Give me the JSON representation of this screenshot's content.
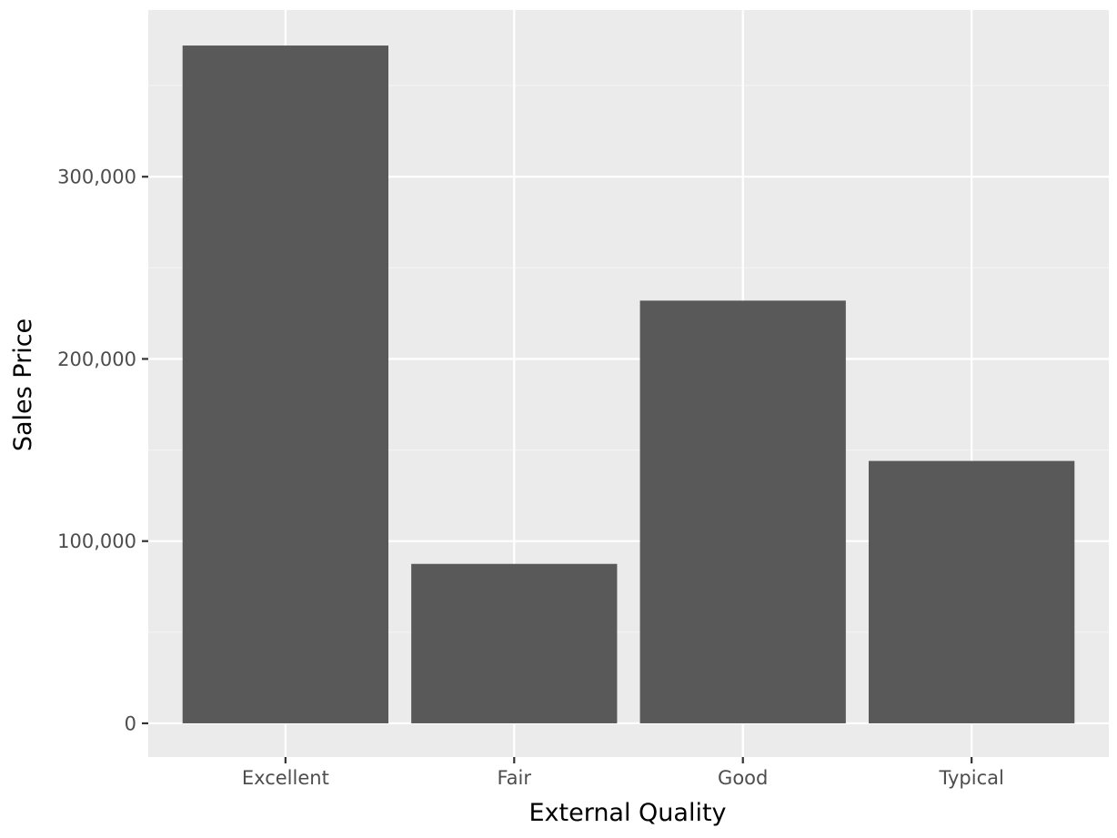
{
  "chart_data": {
    "type": "bar",
    "xlabel": "External Quality",
    "ylabel": "Sales Price",
    "categories": [
      "Excellent",
      "Fair",
      "Good",
      "Typical"
    ],
    "values": [
      372000,
      87500,
      232000,
      144000
    ],
    "ylim": [
      -18500,
      391500
    ],
    "yticks": [
      0,
      100000,
      200000,
      300000
    ],
    "ytick_labels": [
      "0",
      "100,000",
      "200,000",
      "300,000"
    ],
    "grid": true,
    "legend": "none",
    "colors": {
      "bar": "#595959",
      "panel": "#ebebeb",
      "grid_major": "#ffffff",
      "grid_minor": "#f4f4f4"
    }
  }
}
